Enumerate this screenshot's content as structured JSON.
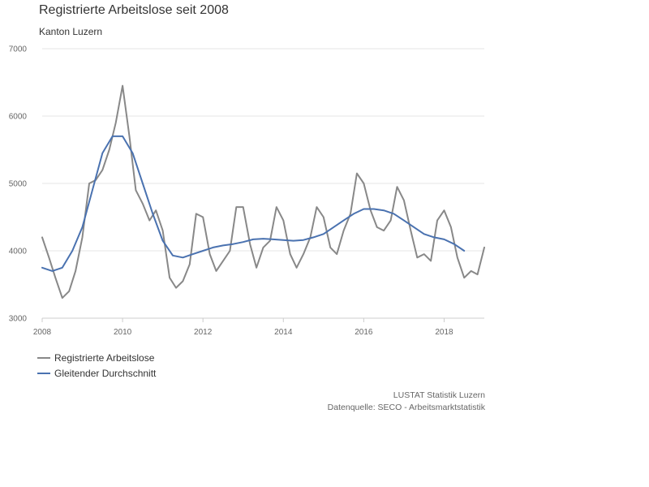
{
  "title": "Registrierte Arbeitslose seit 2008",
  "subtitle": "Kanton Luzern",
  "credits": {
    "line1": "LUSTAT Statistik Luzern",
    "line2": "Datenquelle: SECO - Arbeitsmarktstatistik"
  },
  "colors": {
    "series1": "#888888",
    "series2": "#4a72b0",
    "grid": "#e6e6e6",
    "axis": "#cccccc"
  },
  "chart_data": {
    "type": "line",
    "title": "Registrierte Arbeitslose seit 2008",
    "subtitle": "Kanton Luzern",
    "xlim": [
      2008.0,
      2019.0
    ],
    "ylim": [
      3000,
      7000
    ],
    "x_ticks": [
      2008,
      2010,
      2012,
      2014,
      2016,
      2018
    ],
    "y_ticks": [
      3000,
      4000,
      5000,
      6000,
      7000
    ],
    "grid": true,
    "legend_position": "bottom-left",
    "series": [
      {
        "name": "Registrierte Arbeitslose",
        "color": "#888888",
        "points": [
          [
            2008.0,
            4200
          ],
          [
            2008.17,
            3900
          ],
          [
            2008.33,
            3600
          ],
          [
            2008.5,
            3300
          ],
          [
            2008.67,
            3400
          ],
          [
            2008.83,
            3700
          ],
          [
            2009.0,
            4200
          ],
          [
            2009.17,
            5000
          ],
          [
            2009.33,
            5050
          ],
          [
            2009.5,
            5200
          ],
          [
            2009.67,
            5500
          ],
          [
            2009.83,
            5900
          ],
          [
            2010.0,
            6450
          ],
          [
            2010.17,
            5700
          ],
          [
            2010.33,
            4900
          ],
          [
            2010.5,
            4700
          ],
          [
            2010.67,
            4450
          ],
          [
            2010.83,
            4600
          ],
          [
            2011.0,
            4300
          ],
          [
            2011.17,
            3600
          ],
          [
            2011.33,
            3450
          ],
          [
            2011.5,
            3550
          ],
          [
            2011.67,
            3800
          ],
          [
            2011.83,
            4550
          ],
          [
            2012.0,
            4500
          ],
          [
            2012.17,
            3950
          ],
          [
            2012.33,
            3700
          ],
          [
            2012.5,
            3850
          ],
          [
            2012.67,
            4000
          ],
          [
            2012.83,
            4650
          ],
          [
            2013.0,
            4650
          ],
          [
            2013.17,
            4100
          ],
          [
            2013.33,
            3750
          ],
          [
            2013.5,
            4050
          ],
          [
            2013.67,
            4150
          ],
          [
            2013.83,
            4650
          ],
          [
            2014.0,
            4450
          ],
          [
            2014.17,
            3950
          ],
          [
            2014.33,
            3750
          ],
          [
            2014.5,
            3950
          ],
          [
            2014.67,
            4200
          ],
          [
            2014.83,
            4650
          ],
          [
            2015.0,
            4500
          ],
          [
            2015.17,
            4050
          ],
          [
            2015.33,
            3950
          ],
          [
            2015.5,
            4300
          ],
          [
            2015.67,
            4550
          ],
          [
            2015.83,
            5150
          ],
          [
            2016.0,
            5000
          ],
          [
            2016.17,
            4600
          ],
          [
            2016.33,
            4350
          ],
          [
            2016.5,
            4300
          ],
          [
            2016.67,
            4450
          ],
          [
            2016.83,
            4950
          ],
          [
            2017.0,
            4750
          ],
          [
            2017.17,
            4300
          ],
          [
            2017.33,
            3900
          ],
          [
            2017.5,
            3950
          ],
          [
            2017.67,
            3850
          ],
          [
            2017.83,
            4450
          ],
          [
            2018.0,
            4600
          ],
          [
            2018.17,
            4350
          ],
          [
            2018.33,
            3900
          ],
          [
            2018.5,
            3600
          ],
          [
            2018.67,
            3700
          ],
          [
            2018.83,
            3650
          ],
          [
            2019.0,
            4050
          ]
        ]
      },
      {
        "name": "Gleitender Durchschnitt",
        "color": "#4a72b0",
        "points": [
          [
            2008.0,
            3750
          ],
          [
            2008.25,
            3700
          ],
          [
            2008.5,
            3750
          ],
          [
            2008.75,
            4000
          ],
          [
            2009.0,
            4350
          ],
          [
            2009.25,
            4900
          ],
          [
            2009.5,
            5450
          ],
          [
            2009.75,
            5700
          ],
          [
            2010.0,
            5700
          ],
          [
            2010.25,
            5450
          ],
          [
            2010.5,
            5000
          ],
          [
            2010.75,
            4550
          ],
          [
            2011.0,
            4150
          ],
          [
            2011.25,
            3930
          ],
          [
            2011.5,
            3900
          ],
          [
            2011.75,
            3950
          ],
          [
            2012.0,
            4000
          ],
          [
            2012.25,
            4050
          ],
          [
            2012.5,
            4080
          ],
          [
            2012.75,
            4100
          ],
          [
            2013.0,
            4130
          ],
          [
            2013.25,
            4170
          ],
          [
            2013.5,
            4180
          ],
          [
            2013.75,
            4170
          ],
          [
            2014.0,
            4160
          ],
          [
            2014.25,
            4150
          ],
          [
            2014.5,
            4160
          ],
          [
            2014.75,
            4200
          ],
          [
            2015.0,
            4250
          ],
          [
            2015.25,
            4350
          ],
          [
            2015.5,
            4450
          ],
          [
            2015.75,
            4550
          ],
          [
            2016.0,
            4620
          ],
          [
            2016.25,
            4620
          ],
          [
            2016.5,
            4600
          ],
          [
            2016.75,
            4550
          ],
          [
            2017.0,
            4450
          ],
          [
            2017.25,
            4350
          ],
          [
            2017.5,
            4250
          ],
          [
            2017.75,
            4200
          ],
          [
            2018.0,
            4170
          ],
          [
            2018.25,
            4100
          ],
          [
            2018.5,
            4000
          ]
        ]
      }
    ]
  }
}
